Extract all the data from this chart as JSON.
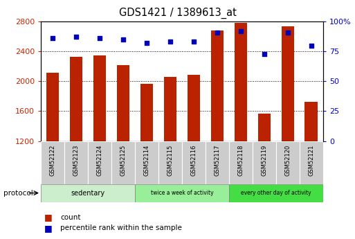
{
  "title": "GDS1421 / 1389613_at",
  "samples": [
    "GSM52122",
    "GSM52123",
    "GSM52124",
    "GSM52125",
    "GSM52114",
    "GSM52115",
    "GSM52116",
    "GSM52117",
    "GSM52118",
    "GSM52119",
    "GSM52120",
    "GSM52121"
  ],
  "counts": [
    2110,
    2330,
    2350,
    2220,
    1970,
    2060,
    2090,
    2680,
    2780,
    1565,
    2740,
    1720
  ],
  "percentiles": [
    86,
    87,
    86,
    85,
    82,
    83,
    83,
    91,
    92,
    73,
    91,
    80
  ],
  "ylim_left": [
    1200,
    2800
  ],
  "ylim_right": [
    0,
    100
  ],
  "yticks_left": [
    1200,
    1600,
    2000,
    2400,
    2800
  ],
  "yticks_right": [
    0,
    25,
    50,
    75,
    100
  ],
  "bar_color": "#bb2200",
  "dot_color": "#0000bb",
  "groups": [
    {
      "label": "sedentary",
      "start": 0,
      "end": 4,
      "color": "#cceecc"
    },
    {
      "label": "twice a week of activity",
      "start": 4,
      "end": 8,
      "color": "#99ee99"
    },
    {
      "label": "every other day of activity",
      "start": 8,
      "end": 12,
      "color": "#44dd44"
    }
  ],
  "legend_count_label": "count",
  "legend_pct_label": "percentile rank within the sample",
  "protocol_label": "protocol",
  "left_tick_color": "#cc2200",
  "right_tick_color": "#0000cc",
  "bar_bottom": 1200,
  "cell_bg": "#cccccc"
}
